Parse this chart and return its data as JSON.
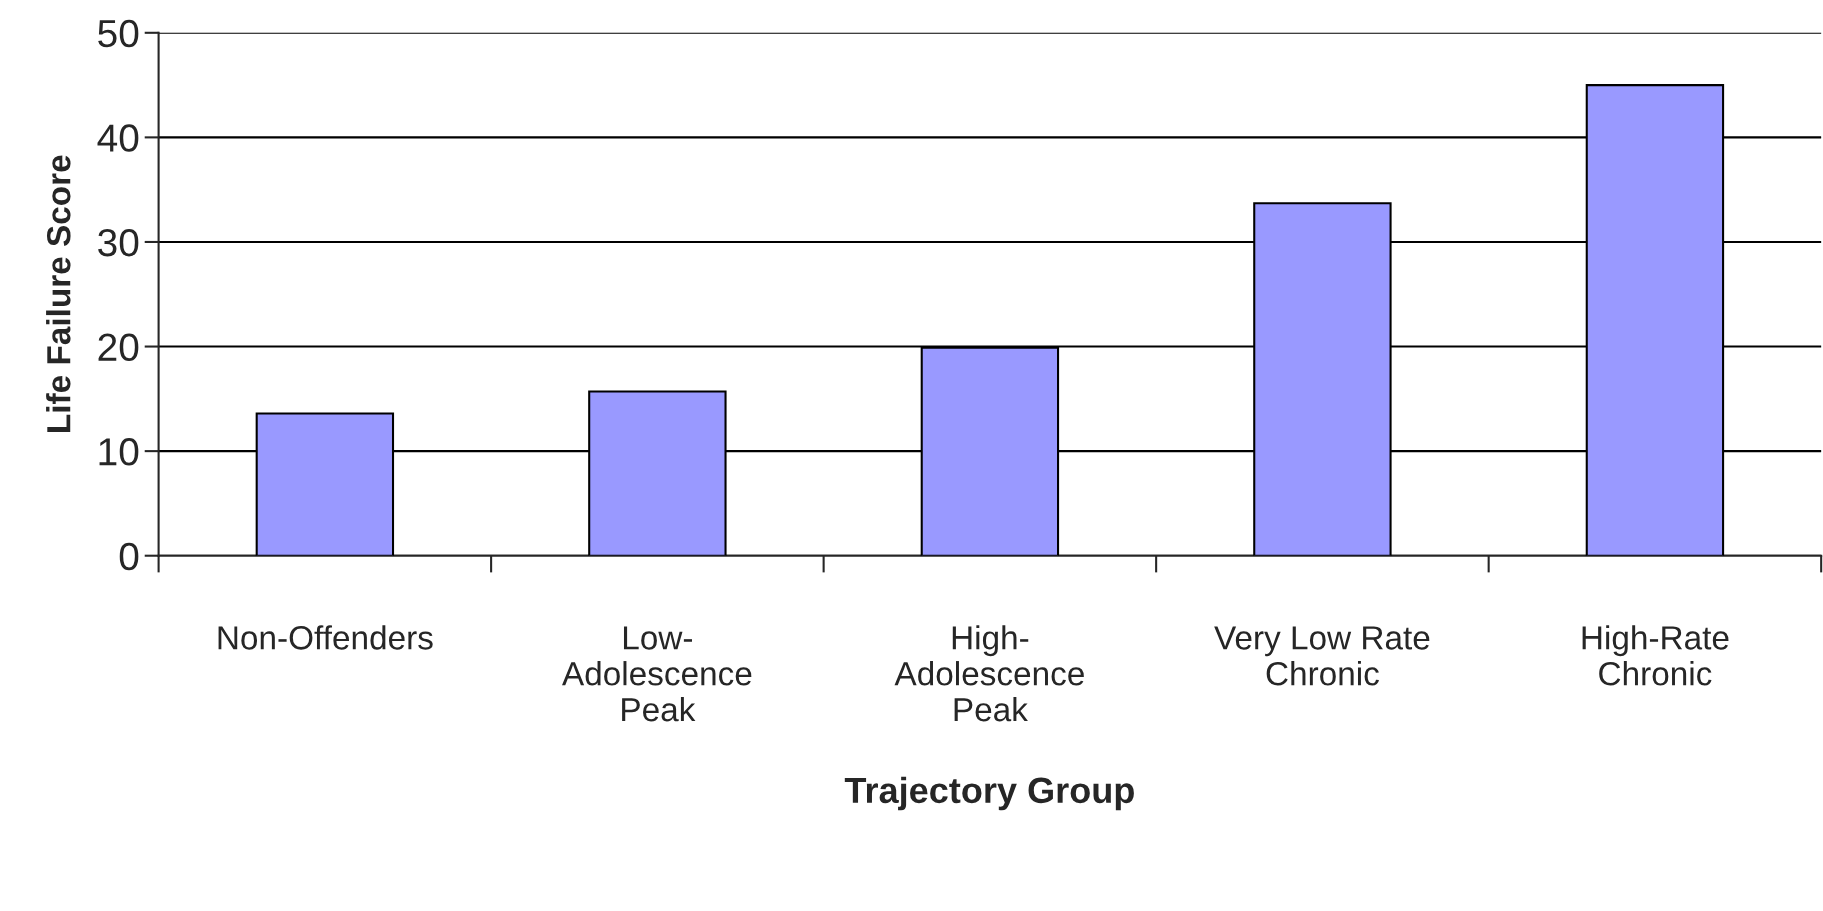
{
  "chart_data": {
    "type": "bar",
    "xlabel": "Trajectory Group",
    "ylabel": "Life Failure Score",
    "categories": [
      "Non-Offenders",
      "Low-\nAdolescence\nPeak",
      "High-\nAdolescence\nPeak",
      "Very Low Rate\nChronic",
      "High-Rate\nChronic"
    ],
    "values": [
      13.6,
      15.7,
      19.9,
      33.7,
      45.0
    ],
    "color": "#9999ff",
    "ylim": [
      0,
      50
    ],
    "yticks": [
      0,
      10,
      20,
      30,
      40,
      50
    ],
    "grid": "y"
  }
}
